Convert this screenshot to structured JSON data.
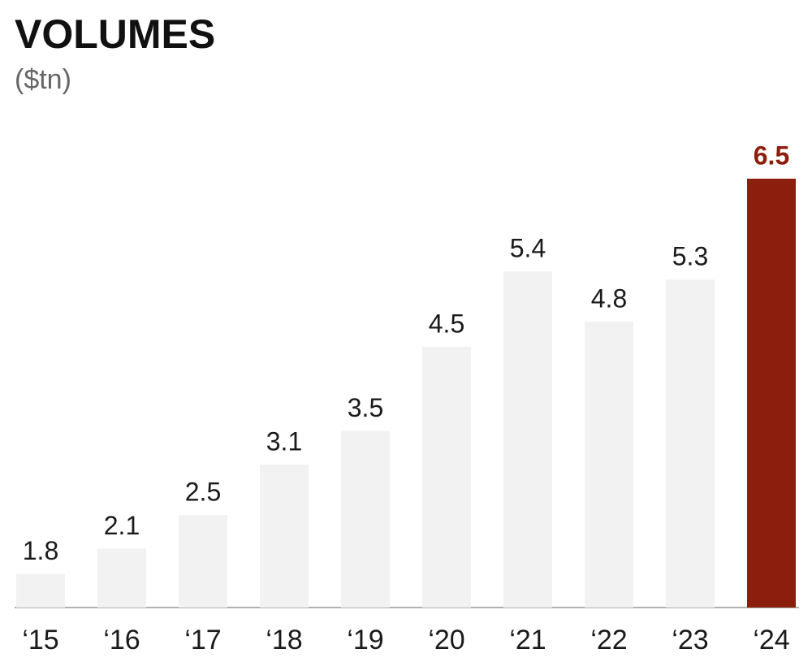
{
  "chart_data": {
    "type": "bar",
    "title": "VOLUMES",
    "subtitle": "($tn)",
    "categories": [
      "‘15",
      "‘16",
      "‘17",
      "‘18",
      "‘19",
      "‘20",
      "‘21",
      "‘22",
      "‘23",
      "‘24"
    ],
    "values": [
      1.8,
      2.1,
      2.5,
      3.1,
      3.5,
      4.5,
      5.4,
      4.8,
      5.3,
      6.5
    ],
    "colors": [
      "#f2f2f2",
      "#f2f2f2",
      "#f2f2f2",
      "#f2f2f2",
      "#f2f2f2",
      "#f2f2f2",
      "#f2f2f2",
      "#f2f2f2",
      "#f2f2f2",
      "#8b1e0c"
    ],
    "label_colors": [
      "#1a1a1a",
      "#1a1a1a",
      "#1a1a1a",
      "#1a1a1a",
      "#1a1a1a",
      "#1a1a1a",
      "#1a1a1a",
      "#1a1a1a",
      "#1a1a1a",
      "#8b1e0c"
    ],
    "ylim": [
      1.4,
      6.5
    ]
  }
}
